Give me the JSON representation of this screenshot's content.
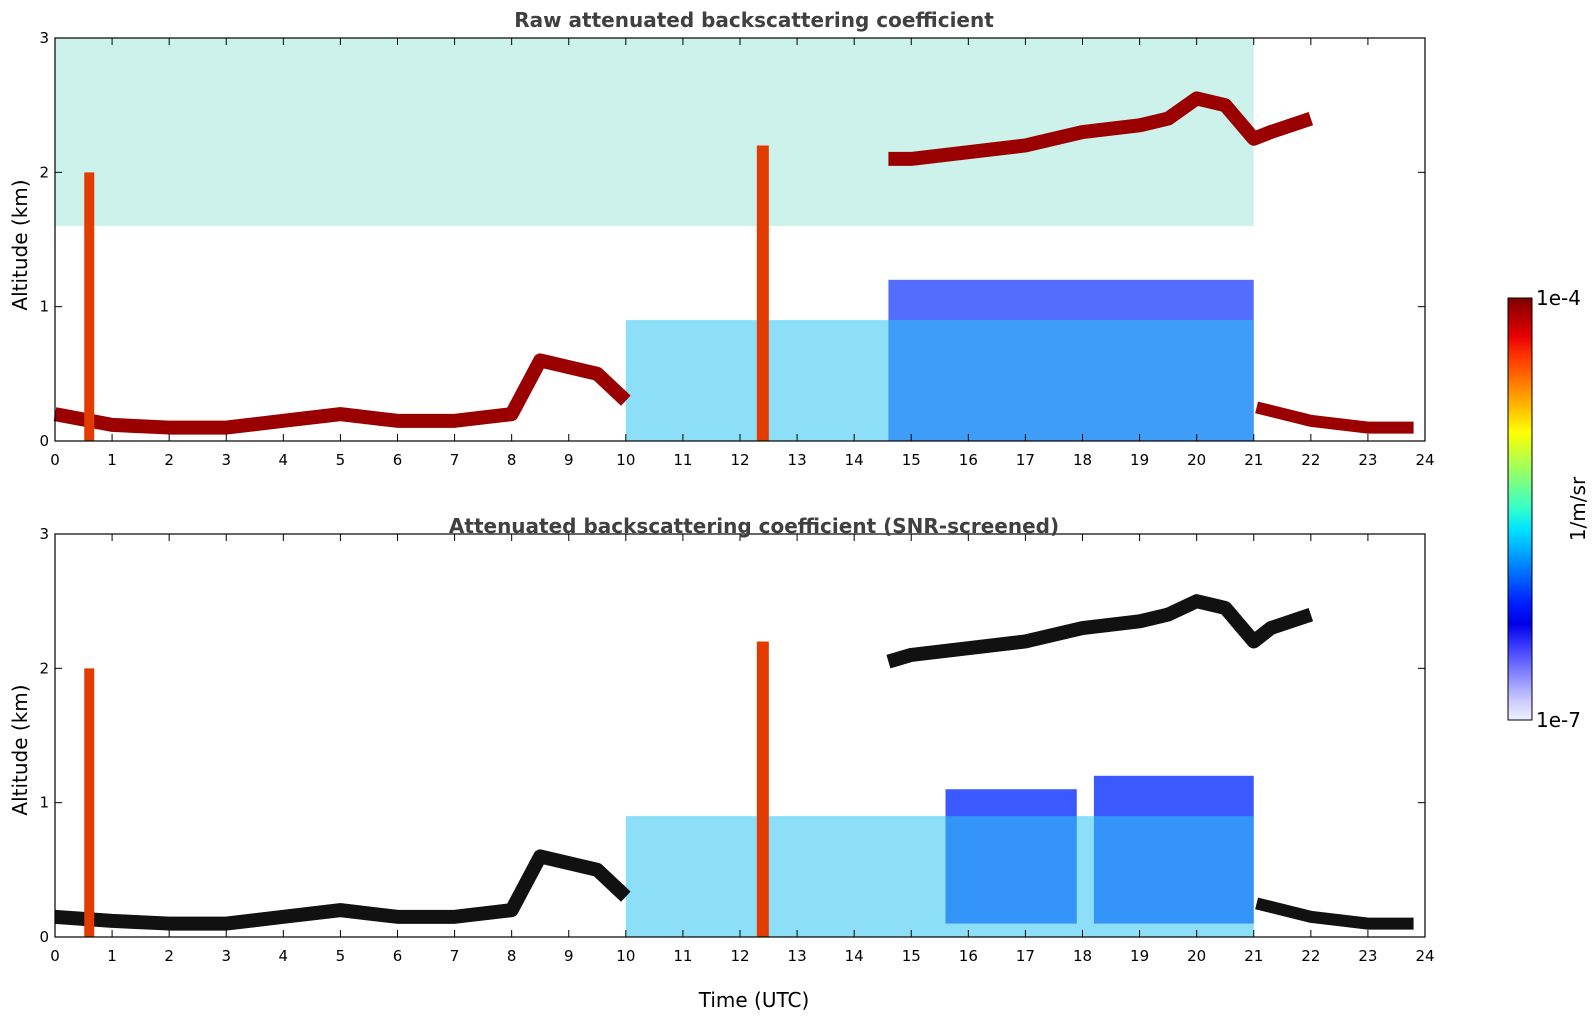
{
  "chart_data": [
    {
      "type": "heatmap",
      "title": "Raw attenuated backscattering coefficient",
      "xlabel": "",
      "ylabel": "Altitude (km)",
      "xlim": [
        0,
        24
      ],
      "ylim": [
        0,
        3
      ],
      "xticks": [
        "0",
        "1",
        "2",
        "3",
        "4",
        "5",
        "6",
        "7",
        "8",
        "9",
        "10",
        "11",
        "12",
        "13",
        "14",
        "15",
        "16",
        "17",
        "18",
        "19",
        "20",
        "21",
        "22",
        "23",
        "24"
      ],
      "yticks": [
        "0",
        "1",
        "2",
        "3"
      ],
      "colorscale": "jet",
      "cloud_base_layer": [
        [
          0,
          0.2
        ],
        [
          1,
          0.12
        ],
        [
          2,
          0.1
        ],
        [
          3,
          0.1
        ],
        [
          4,
          0.15
        ],
        [
          5,
          0.2
        ],
        [
          6,
          0.15
        ],
        [
          7,
          0.15
        ],
        [
          8,
          0.2
        ],
        [
          8.5,
          0.6
        ],
        [
          9.5,
          0.5
        ],
        [
          10,
          0.3
        ]
      ],
      "elevated_layer": [
        [
          14.6,
          2.1
        ],
        [
          15,
          2.1
        ],
        [
          16,
          2.15
        ],
        [
          17,
          2.2
        ],
        [
          18,
          2.3
        ],
        [
          19,
          2.35
        ],
        [
          19.5,
          2.4
        ],
        [
          20,
          2.55
        ],
        [
          20.5,
          2.5
        ],
        [
          21,
          2.25
        ],
        [
          21.3,
          2.3
        ],
        [
          22,
          2.4
        ]
      ]
    },
    {
      "type": "heatmap",
      "title": "Attenuated backscattering coefficient (SNR-screened)",
      "xlabel": "Time (UTC)",
      "ylabel": "Altitude (km)",
      "xlim": [
        0,
        24
      ],
      "ylim": [
        0,
        3
      ],
      "xticks": [
        "0",
        "1",
        "2",
        "3",
        "4",
        "5",
        "6",
        "7",
        "8",
        "9",
        "10",
        "11",
        "12",
        "13",
        "14",
        "15",
        "16",
        "17",
        "18",
        "19",
        "20",
        "21",
        "22",
        "23",
        "24"
      ],
      "yticks": [
        "0",
        "1",
        "2",
        "3"
      ],
      "colorscale": "jet",
      "cloud_base_layer": [
        [
          0,
          0.15
        ],
        [
          1,
          0.12
        ],
        [
          2,
          0.1
        ],
        [
          3,
          0.1
        ],
        [
          4,
          0.15
        ],
        [
          5,
          0.2
        ],
        [
          6,
          0.15
        ],
        [
          7,
          0.15
        ],
        [
          8,
          0.2
        ],
        [
          8.5,
          0.6
        ],
        [
          9.5,
          0.5
        ],
        [
          10,
          0.3
        ]
      ],
      "elevated_layer": [
        [
          14.6,
          2.05
        ],
        [
          15,
          2.1
        ],
        [
          16,
          2.15
        ],
        [
          17,
          2.2
        ],
        [
          18,
          2.3
        ],
        [
          19,
          2.35
        ],
        [
          19.5,
          2.4
        ],
        [
          20,
          2.5
        ],
        [
          20.5,
          2.45
        ],
        [
          21,
          2.2
        ],
        [
          21.3,
          2.3
        ],
        [
          22,
          2.4
        ]
      ]
    }
  ],
  "colorbar": {
    "label": "1/m/sr",
    "max_label": "1e-4",
    "min_label": "1e-7",
    "colors": [
      "#7f0000",
      "#b30000",
      "#e60000",
      "#ff3300",
      "#ff6600",
      "#ff9900",
      "#ffcc00",
      "#ffff00",
      "#ccff33",
      "#99ff66",
      "#66ff99",
      "#33ffcc",
      "#00e6ff",
      "#00b3ff",
      "#0080ff",
      "#004dff",
      "#001aff",
      "#0000e6",
      "#3333ff",
      "#6666ff",
      "#9999ff",
      "#ccccff",
      "#eeeeff"
    ]
  }
}
